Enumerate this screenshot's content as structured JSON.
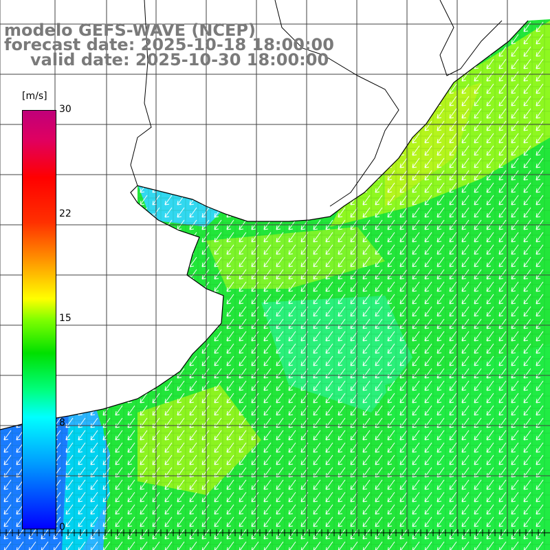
{
  "title": {
    "model": "modelo GEFS-WAVE (NCEP)",
    "forecast": "forecast date: 2025-10-18 18:00:00",
    "valid": "valid date: 2025-10-30 18:00:00"
  },
  "colorbar": {
    "unit": "[m/s]",
    "ticks": [
      "30",
      "22",
      "15",
      "8",
      "0"
    ],
    "tick_values": [
      30,
      22,
      15,
      8,
      0
    ],
    "min": 0,
    "max": 30
  },
  "colors": {
    "land": "#ffffff",
    "grid": "#404040",
    "coast": "#000000",
    "arrow": "#ffffff",
    "title": "#7a7a7a"
  }
}
